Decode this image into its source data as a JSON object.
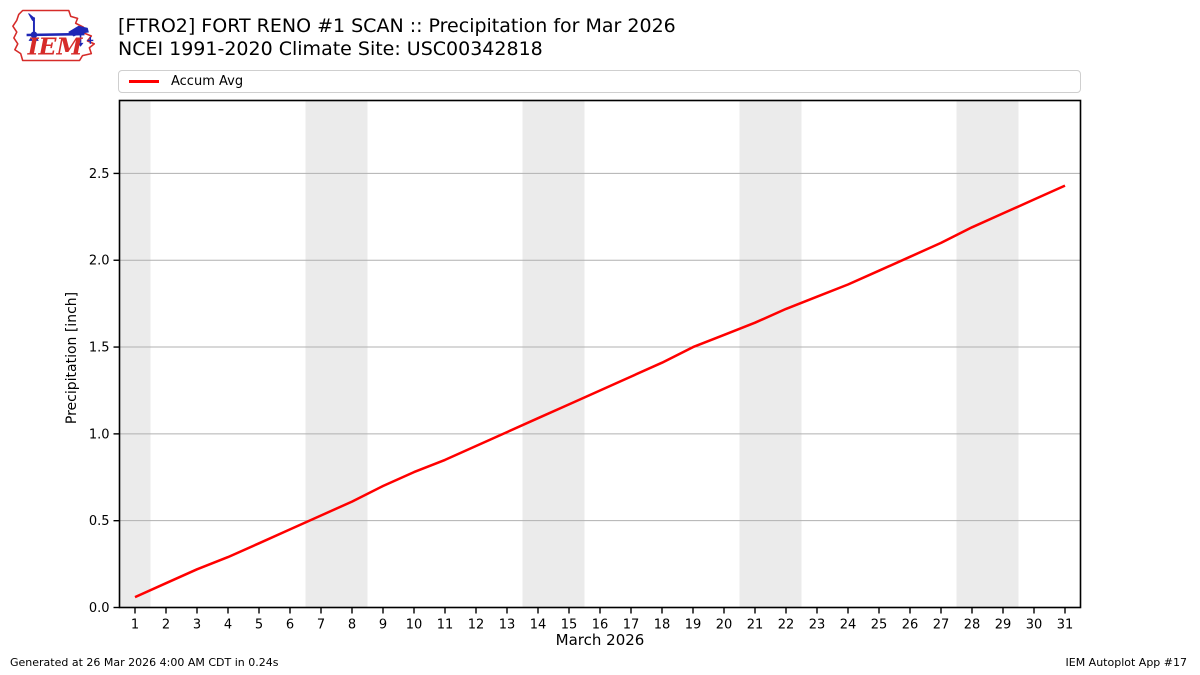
{
  "header": {
    "logo": {
      "text": "IEM",
      "red": "#d62b29",
      "blue": "#1f27b5"
    },
    "title": "[FTRO2] FORT RENO #1 SCAN :: Precipitation for Mar 2026",
    "subtitle": "NCEI 1991-2020 Climate Site: USC00342818"
  },
  "legend": {
    "items": [
      {
        "label": "Accum Avg",
        "color": "#ff0000"
      }
    ]
  },
  "chart_data": {
    "type": "line",
    "title": "[FTRO2] FORT RENO #1 SCAN :: Precipitation for Mar 2026",
    "subtitle": "NCEI 1991-2020 Climate Site: USC00342818",
    "xlabel": "March 2026",
    "ylabel": "Precipitation [inch]",
    "xlim": [
      0.5,
      31.5
    ],
    "ylim": [
      0,
      2.92
    ],
    "grid": "horizontal",
    "legend_position": "top-left-above-plot",
    "x": [
      1,
      2,
      3,
      4,
      5,
      6,
      7,
      8,
      9,
      10,
      11,
      12,
      13,
      14,
      15,
      16,
      17,
      18,
      19,
      20,
      21,
      22,
      23,
      24,
      25,
      26,
      27,
      28,
      29,
      30,
      31
    ],
    "series": [
      {
        "name": "Accum Avg",
        "color": "#ff0000",
        "values": [
          0.06,
          0.14,
          0.22,
          0.29,
          0.37,
          0.45,
          0.53,
          0.61,
          0.7,
          0.78,
          0.85,
          0.93,
          1.01,
          1.09,
          1.17,
          1.25,
          1.33,
          1.41,
          1.5,
          1.57,
          1.64,
          1.72,
          1.79,
          1.86,
          1.94,
          2.02,
          2.1,
          2.19,
          2.27,
          2.35,
          2.43
        ]
      }
    ],
    "yticks": [
      0.0,
      0.5,
      1.0,
      1.5,
      2.0,
      2.5
    ],
    "xticks": [
      1,
      2,
      3,
      4,
      5,
      6,
      7,
      8,
      9,
      10,
      11,
      12,
      13,
      14,
      15,
      16,
      17,
      18,
      19,
      20,
      21,
      22,
      23,
      24,
      25,
      26,
      27,
      28,
      29,
      30,
      31
    ],
    "weekend_bands": [
      [
        0.5,
        1.5
      ],
      [
        6.5,
        8.5
      ],
      [
        13.5,
        15.5
      ],
      [
        20.5,
        22.5
      ],
      [
        27.5,
        29.5
      ]
    ],
    "colors": {
      "band": "#ebebeb",
      "grid": "#b0b0b0",
      "spine": "#000000"
    }
  },
  "footer": {
    "left": "Generated at 26 Mar 2026 4:00 AM CDT in 0.24s",
    "right": "IEM Autoplot App #17"
  }
}
